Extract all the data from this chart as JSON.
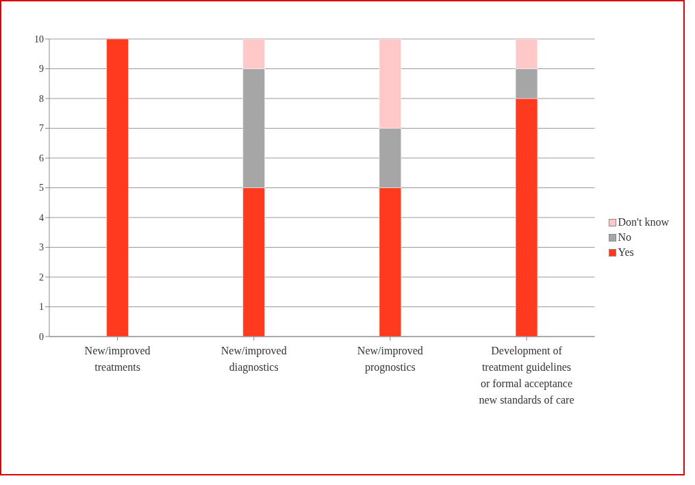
{
  "chart_data": {
    "type": "bar",
    "stacked": true,
    "categories": [
      "New/improved treatments",
      "New/improved diagnostics",
      "New/improved prognostics",
      "Development of treatment guidelines or formal acceptance new standards of care"
    ],
    "series": [
      {
        "name": "Yes",
        "color": "#ff3a1e",
        "values": [
          10,
          5,
          5,
          8
        ]
      },
      {
        "name": "No",
        "color": "#a6a6a6",
        "values": [
          0,
          4,
          2,
          1
        ]
      },
      {
        "name": "Don't know",
        "color": "#ffc9c9",
        "values": [
          0,
          1,
          3,
          1
        ]
      }
    ],
    "ylim": [
      0,
      10
    ],
    "yticks": [
      0,
      1,
      2,
      3,
      4,
      5,
      6,
      7,
      8,
      9,
      10
    ],
    "grid": "y",
    "legend": "right"
  }
}
